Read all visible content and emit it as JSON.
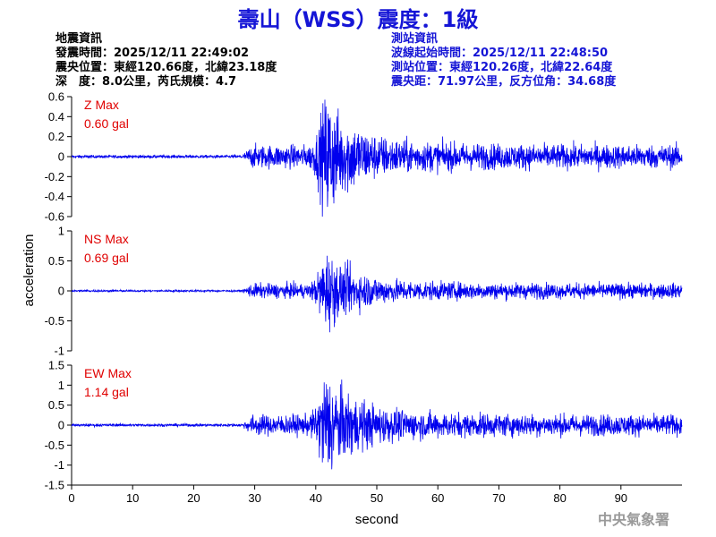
{
  "title": "壽山（WSS）震度：1級",
  "quake_info": {
    "heading": "地震資訊",
    "origin_time": "發震時間：2025/12/11 22:49:02",
    "epicenter": "震央位置：東經120.66度，北緯23.18度",
    "depth_magnitude": "深　度：8.0公里，芮氏規模：4.7"
  },
  "station_info": {
    "heading": "測站資訊",
    "wave_start": "波線起始時間：2025/12/11 22:48:50",
    "station_location": "測站位置：東經120.26度，北緯22.64度",
    "distance_azimuth": "震央距：71.97公里，反方位角：34.68度"
  },
  "agency": "中央氣象署",
  "colors": {
    "title": "#1515d6",
    "trace": "#0000ee",
    "max_label": "#e00000",
    "station_info": "#1515d6"
  },
  "chart_data": [
    {
      "type": "line",
      "component": "Z",
      "max_label": "Z Max",
      "max_value": "0.60 gal",
      "ylim": [
        -0.6,
        0.6
      ],
      "yticks": [
        "0.6",
        "0.4",
        "0.2",
        "0",
        "-0.2",
        "-0.4",
        "-0.6"
      ],
      "ytick_values": [
        0.6,
        0.4,
        0.2,
        0,
        -0.2,
        -0.4,
        -0.6
      ],
      "xlim": [
        0,
        100
      ],
      "wave_onset_s": 28,
      "peak_time_s": 42,
      "peak_abs": 0.6
    },
    {
      "type": "line",
      "component": "NS",
      "max_label": "NS Max",
      "max_value": "0.69 gal",
      "ylim": [
        -1,
        1
      ],
      "yticks": [
        "1",
        "0.5",
        "0",
        "-0.5",
        "-1"
      ],
      "ytick_values": [
        1,
        0.5,
        0,
        -0.5,
        -1
      ],
      "xlim": [
        0,
        100
      ],
      "wave_onset_s": 28,
      "peak_time_s": 42,
      "peak_abs": 0.69
    },
    {
      "type": "line",
      "component": "EW",
      "max_label": "EW Max",
      "max_value": "1.14 gal",
      "ylim": [
        -1.5,
        1.5
      ],
      "yticks": [
        "1.5",
        "1",
        "0.5",
        "0",
        "-0.5",
        "-1",
        "-1.5"
      ],
      "ytick_values": [
        1.5,
        1,
        0.5,
        0,
        -0.5,
        -1,
        -1.5
      ],
      "xlim": [
        0,
        100
      ],
      "wave_onset_s": 28,
      "peak_time_s": 42,
      "peak_abs": 1.14
    }
  ],
  "x_axis": {
    "label": "second",
    "ticks": [
      "0",
      "10",
      "20",
      "30",
      "40",
      "50",
      "60",
      "70",
      "80",
      "90"
    ],
    "tick_values": [
      0,
      10,
      20,
      30,
      40,
      50,
      60,
      70,
      80,
      90
    ]
  },
  "y_axis_label": "acceleration"
}
